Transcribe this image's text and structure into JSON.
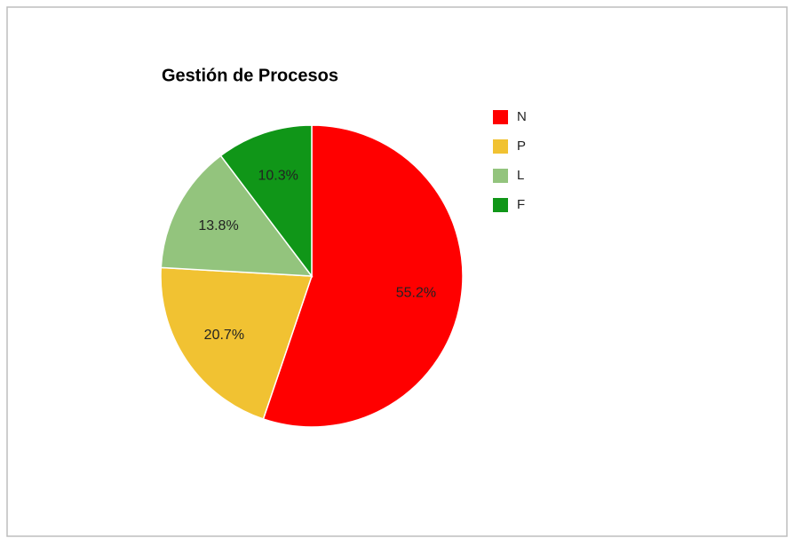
{
  "chart_data": {
    "type": "pie",
    "title": "Gestión de Procesos",
    "categories": [
      "N",
      "P",
      "L",
      "F"
    ],
    "values": [
      55.2,
      20.7,
      13.8,
      10.3
    ],
    "value_labels": [
      "55.2%",
      "20.7%",
      "13.8%",
      "10.3%"
    ],
    "colors": [
      "#ff0000",
      "#f1c232",
      "#93c47d",
      "#109618"
    ],
    "legend": "right"
  }
}
